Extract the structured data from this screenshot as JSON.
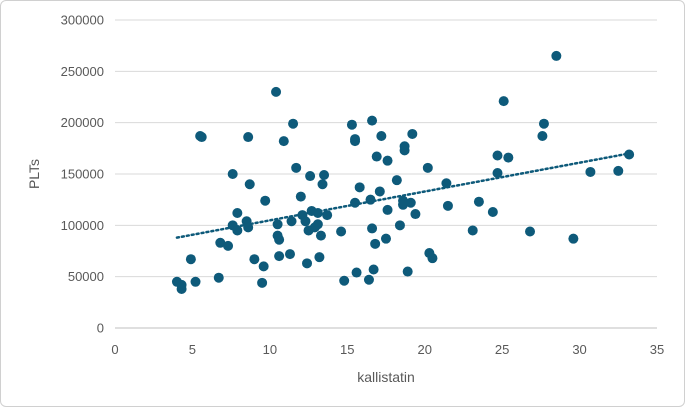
{
  "chart_data": {
    "type": "scatter",
    "xlabel": "kallistatin",
    "ylabel": "PLTs",
    "xlim": [
      0,
      35
    ],
    "ylim": [
      0,
      300000
    ],
    "x_ticks": [
      "0",
      "5",
      "10",
      "15",
      "20",
      "25",
      "30",
      "35"
    ],
    "y_ticks": [
      "0",
      "50000",
      "100000",
      "150000",
      "200000",
      "250000",
      "300000"
    ],
    "grid": "horizontal",
    "legend": "none",
    "marker_color": "#0e5a7a",
    "trendline": {
      "style": "dotted",
      "x": [
        4,
        33.2
      ],
      "y": [
        88000,
        170000
      ],
      "color": "#0e5a7a"
    },
    "points": [
      [
        4.0,
        45000
      ],
      [
        4.3,
        38000
      ],
      [
        4.3,
        42000
      ],
      [
        4.9,
        67000
      ],
      [
        5.2,
        45000
      ],
      [
        5.5,
        187000
      ],
      [
        5.6,
        186000
      ],
      [
        6.7,
        49000
      ],
      [
        6.8,
        83000
      ],
      [
        7.3,
        80000
      ],
      [
        7.6,
        100000
      ],
      [
        7.6,
        150000
      ],
      [
        7.9,
        112000
      ],
      [
        7.9,
        95000
      ],
      [
        8.5,
        104000
      ],
      [
        8.6,
        98000
      ],
      [
        8.6,
        186000
      ],
      [
        8.7,
        140000
      ],
      [
        9.0,
        67000
      ],
      [
        9.5,
        44000
      ],
      [
        9.6,
        60000
      ],
      [
        9.7,
        124000
      ],
      [
        10.4,
        230000
      ],
      [
        10.5,
        101000
      ],
      [
        10.5,
        90000
      ],
      [
        10.6,
        86000
      ],
      [
        10.6,
        70000
      ],
      [
        10.9,
        182000
      ],
      [
        11.3,
        72000
      ],
      [
        11.4,
        104000
      ],
      [
        11.5,
        199000
      ],
      [
        11.7,
        156000
      ],
      [
        12.0,
        128000
      ],
      [
        12.1,
        110000
      ],
      [
        12.3,
        104000
      ],
      [
        12.4,
        63000
      ],
      [
        12.5,
        95000
      ],
      [
        12.6,
        148000
      ],
      [
        12.7,
        114000
      ],
      [
        12.9,
        98000
      ],
      [
        13.1,
        112000
      ],
      [
        13.1,
        101000
      ],
      [
        13.2,
        69000
      ],
      [
        13.3,
        90000
      ],
      [
        13.4,
        140000
      ],
      [
        13.5,
        149000
      ],
      [
        13.7,
        110000
      ],
      [
        14.6,
        94000
      ],
      [
        14.8,
        46000
      ],
      [
        15.3,
        198000
      ],
      [
        15.5,
        182000
      ],
      [
        15.5,
        184000
      ],
      [
        15.5,
        122000
      ],
      [
        15.6,
        54000
      ],
      [
        15.8,
        137000
      ],
      [
        16.4,
        47000
      ],
      [
        16.5,
        125000
      ],
      [
        16.6,
        97000
      ],
      [
        16.6,
        202000
      ],
      [
        16.7,
        57000
      ],
      [
        16.8,
        82000
      ],
      [
        16.9,
        167000
      ],
      [
        17.1,
        133000
      ],
      [
        17.2,
        187000
      ],
      [
        17.5,
        87000
      ],
      [
        17.6,
        115000
      ],
      [
        17.6,
        163000
      ],
      [
        18.2,
        144000
      ],
      [
        18.4,
        100000
      ],
      [
        18.6,
        124000
      ],
      [
        18.6,
        120000
      ],
      [
        18.7,
        177000
      ],
      [
        18.7,
        173000
      ],
      [
        18.9,
        55000
      ],
      [
        19.1,
        122000
      ],
      [
        19.2,
        189000
      ],
      [
        19.4,
        111000
      ],
      [
        20.2,
        156000
      ],
      [
        20.3,
        73000
      ],
      [
        20.5,
        68000
      ],
      [
        21.4,
        141000
      ],
      [
        21.5,
        119000
      ],
      [
        23.1,
        95000
      ],
      [
        23.5,
        123000
      ],
      [
        24.4,
        113000
      ],
      [
        24.7,
        168000
      ],
      [
        24.7,
        151000
      ],
      [
        25.1,
        221000
      ],
      [
        25.4,
        166000
      ],
      [
        26.8,
        94000
      ],
      [
        27.6,
        187000
      ],
      [
        27.7,
        199000
      ],
      [
        28.5,
        265000
      ],
      [
        29.6,
        87000
      ],
      [
        30.7,
        152000
      ],
      [
        32.5,
        153000
      ],
      [
        33.2,
        169000
      ]
    ]
  }
}
